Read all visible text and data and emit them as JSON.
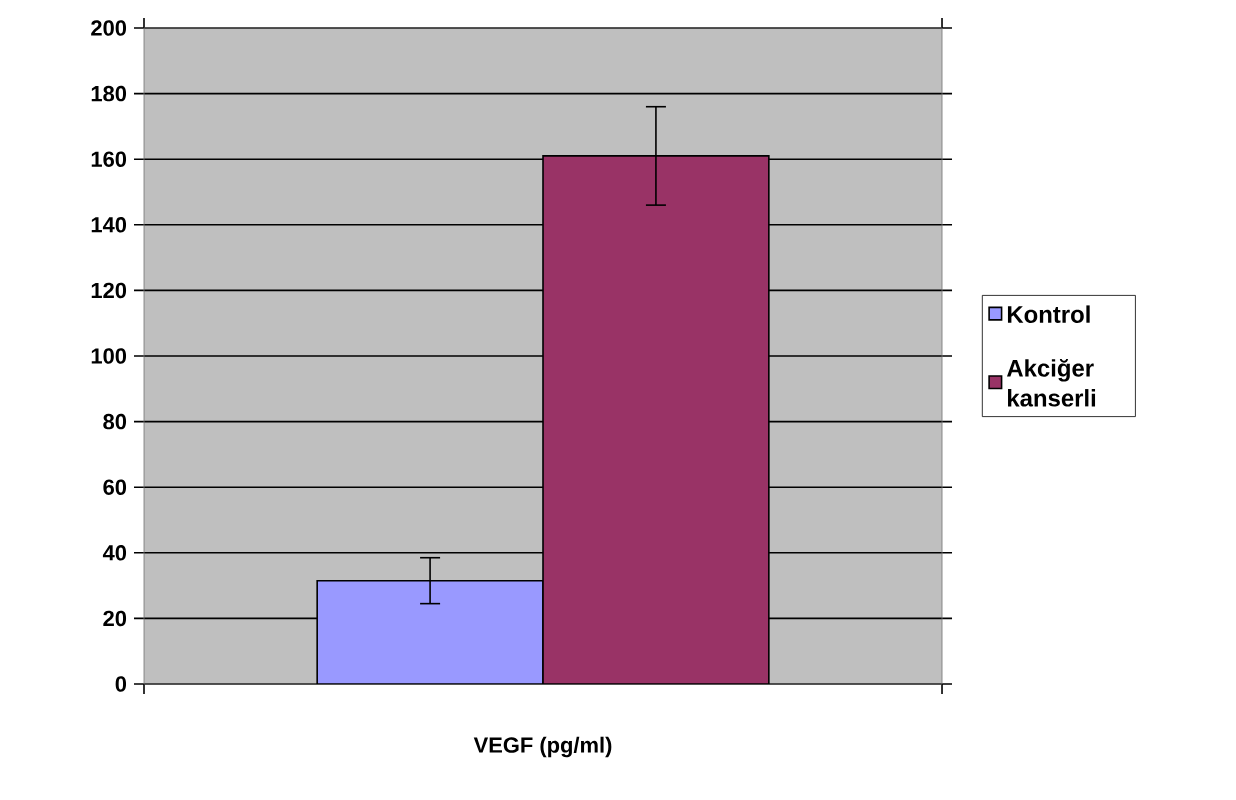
{
  "chart_data": {
    "type": "bar",
    "xlabel": "VEGF (pg/ml)",
    "categories": [
      null
    ],
    "series": [
      {
        "name": "Kontrol",
        "color": "#9999ff",
        "values": [
          31.5
        ],
        "errors": [
          7
        ]
      },
      {
        "name": "Akciğer kanserli",
        "color": "#993366",
        "values": [
          161
        ],
        "errors": [
          15
        ]
      }
    ],
    "ylim": [
      0,
      200
    ],
    "yticks": [
      0,
      20,
      40,
      60,
      80,
      100,
      120,
      140,
      160,
      180,
      200
    ],
    "grid": "y",
    "legend": "right"
  }
}
